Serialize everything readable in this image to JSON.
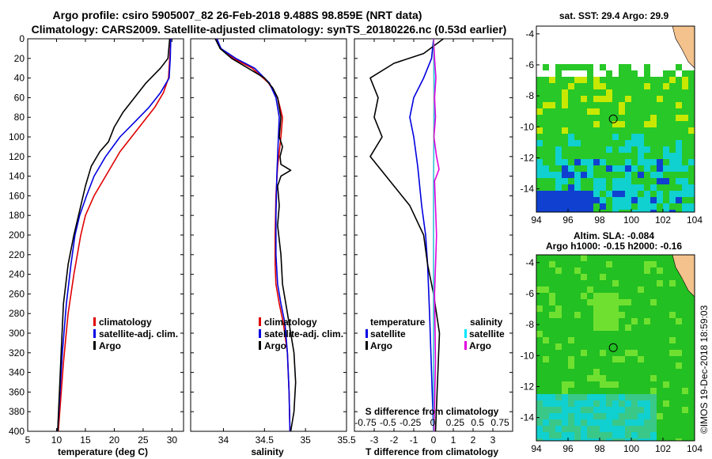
{
  "title": {
    "line1": "Argo profile: csiro 5905007_82 26-Feb-2018 9.488S 98.859E (NRT data)",
    "line2": "Climatology: CARS2009. Satellite-adjusted climatology: synTS_20180226.nc (0.53d earlier)"
  },
  "colors": {
    "climatology": "#e00000",
    "satellite": "#0000e0",
    "argo": "#000000",
    "salinity_satellite": "#00e5ff",
    "salinity_argo": "#e000e0",
    "sst_blue": "#1040d0",
    "sst_cyan": "#10d0d0",
    "sst_green": "#28c828",
    "sst_yellow": "#c8e800",
    "sla_green": "#22c022",
    "sla_light": "#70e030",
    "land": "#f4c28c"
  },
  "chart_data": [
    {
      "type": "line",
      "id": "temperature",
      "xlabel": "temperature (deg C)",
      "ylabel": "depth",
      "xlim": [
        5,
        32
      ],
      "ylim": [
        400,
        0
      ],
      "xticks": [
        5,
        10,
        15,
        20,
        25,
        30
      ],
      "yticks": [
        0,
        20,
        40,
        60,
        80,
        100,
        120,
        140,
        160,
        180,
        200,
        220,
        240,
        260,
        280,
        300,
        320,
        340,
        360,
        380,
        400
      ],
      "legend": [
        "climatology",
        "satellite-adj. clim.",
        "Argo"
      ],
      "series": [
        {
          "name": "climatology",
          "color": "climatology",
          "x": [
            29.8,
            29.6,
            29.4,
            28.5,
            27.0,
            25.0,
            23.0,
            21.0,
            18.5,
            16.5,
            15.0,
            14.2,
            13.0,
            12.0,
            11.2,
            10.3
          ],
          "y": [
            0,
            20,
            40,
            55,
            70,
            85,
            100,
            115,
            140,
            160,
            180,
            200,
            240,
            280,
            330,
            400
          ]
        },
        {
          "name": "satellite-adj. clim.",
          "color": "satellite",
          "x": [
            29.8,
            29.7,
            29.5,
            28.0,
            26.0,
            23.5,
            21.0,
            18.5,
            16.5,
            15.2,
            14.0,
            13.2,
            12.5,
            11.7,
            11.0,
            10.2
          ],
          "y": [
            0,
            20,
            40,
            55,
            70,
            85,
            100,
            120,
            140,
            160,
            180,
            200,
            230,
            270,
            320,
            400
          ]
        },
        {
          "name": "Argo",
          "color": "argo",
          "x": [
            29.6,
            29.3,
            28.0,
            25.5,
            23.5,
            21.5,
            20.0,
            19.0,
            17.5,
            16.0,
            15.0,
            14.0,
            13.0,
            12.0,
            11.2,
            10.8,
            10.2
          ],
          "y": [
            0,
            20,
            30,
            45,
            60,
            75,
            90,
            105,
            115,
            130,
            150,
            175,
            200,
            230,
            270,
            320,
            400
          ]
        }
      ]
    },
    {
      "type": "line",
      "id": "salinity",
      "xlabel": "salinity",
      "ylabel": "depth",
      "xlim": [
        33.6,
        35.5
      ],
      "ylim": [
        400,
        0
      ],
      "xticks": [
        34,
        34.5,
        35,
        35.5
      ],
      "xticklabels": [
        "34",
        "34.5",
        "35",
        "35.5"
      ],
      "legend": [
        "climatology",
        "satellite-adj. clim.",
        "Argo"
      ],
      "series": [
        {
          "name": "climatology",
          "color": "climatology",
          "x": [
            33.92,
            33.96,
            34.12,
            34.35,
            34.55,
            34.66,
            34.72,
            34.7,
            34.66,
            34.64,
            34.63,
            34.63,
            34.64,
            34.68,
            34.73,
            34.78,
            34.8,
            34.81
          ],
          "y": [
            0,
            10,
            20,
            30,
            45,
            60,
            80,
            100,
            130,
            160,
            200,
            230,
            250,
            270,
            290,
            320,
            360,
            400
          ]
        },
        {
          "name": "satellite-adj. clim.",
          "color": "satellite",
          "x": [
            33.92,
            33.97,
            34.15,
            34.38,
            34.56,
            34.64,
            34.68,
            34.67,
            34.65,
            34.64,
            34.64,
            34.66,
            34.7,
            34.75,
            34.78,
            34.8,
            34.81
          ],
          "y": [
            0,
            10,
            20,
            30,
            45,
            60,
            80,
            100,
            140,
            180,
            220,
            250,
            270,
            290,
            320,
            360,
            400
          ]
        },
        {
          "name": "Argo",
          "color": "argo",
          "x": [
            33.9,
            33.96,
            34.1,
            34.3,
            34.5,
            34.6,
            34.66,
            34.7,
            34.68,
            34.72,
            34.69,
            34.7,
            34.82,
            34.7,
            34.66,
            34.68,
            34.66,
            34.7,
            34.72,
            34.76,
            34.82,
            34.86,
            34.88,
            34.86,
            34.82
          ],
          "y": [
            0,
            10,
            20,
            30,
            40,
            50,
            60,
            80,
            100,
            110,
            120,
            128,
            134,
            140,
            150,
            170,
            190,
            220,
            250,
            270,
            300,
            320,
            350,
            380,
            400
          ]
        }
      ]
    },
    {
      "type": "line",
      "id": "difference",
      "xlabel": "T difference from climatology",
      "xlabel_top": "S difference from climatology",
      "xlim": [
        -4,
        4
      ],
      "ylim": [
        400,
        0
      ],
      "xticks": [
        -3,
        -2,
        -1,
        0,
        1,
        2,
        3
      ],
      "xticklabels": [
        "-3",
        "-2",
        "-1",
        "0",
        "1",
        "2",
        "3"
      ],
      "sticks": [
        -0.75,
        -0.5,
        -0.25,
        0,
        0.25,
        0.5,
        0.75
      ],
      "sticklabels": [
        "-0.75",
        "-0.5",
        "-0.25",
        "0",
        "0.25",
        "0.5",
        "0.75"
      ],
      "legend_temperature_title": "temperature",
      "legend_salinity_title": "salinity",
      "legend_temperature": [
        "satellite",
        "Argo"
      ],
      "legend_salinity": [
        "satellite",
        "Argo"
      ],
      "series": [
        {
          "name": "T satellite",
          "color": "satellite",
          "x": [
            0.0,
            -0.1,
            -0.5,
            -1.0,
            -1.2,
            -1.0,
            -0.8,
            -0.6,
            -0.4,
            -0.3,
            -0.2,
            -0.1,
            0.0
          ],
          "y": [
            0,
            20,
            40,
            60,
            80,
            100,
            130,
            170,
            200,
            230,
            280,
            340,
            400
          ]
        },
        {
          "name": "T Argo",
          "color": "argo",
          "x": [
            0.5,
            -0.5,
            -2.0,
            -3.2,
            -2.8,
            -3.0,
            -2.6,
            -3.2,
            -2.0,
            -1.2,
            -0.5,
            -0.3,
            0.0,
            0.3,
            0.2,
            0.1
          ],
          "y": [
            0,
            15,
            25,
            40,
            60,
            80,
            100,
            120,
            150,
            170,
            200,
            230,
            260,
            300,
            350,
            400
          ]
        },
        {
          "name": "S satellite",
          "color": "salinity_satellite",
          "x": [
            0.0,
            0.02,
            0.05,
            0.02,
            0.0,
            0.0,
            0.0,
            0.0,
            0.0
          ],
          "y": [
            0,
            30,
            60,
            100,
            150,
            200,
            250,
            320,
            400
          ]
        },
        {
          "name": "S Argo",
          "color": "salinity_argo",
          "x": [
            0.0,
            0.05,
            0.12,
            0.05,
            0.1,
            0.02,
            0.15,
            0.28,
            0.05,
            0.15,
            0.05,
            0.1,
            0.02
          ],
          "y": [
            0,
            20,
            40,
            60,
            80,
            100,
            120,
            133,
            145,
            200,
            260,
            330,
            400
          ]
        }
      ]
    },
    {
      "type": "heatmap",
      "id": "sst_map",
      "title": "sat. SST: 29.4 Argo: 29.9",
      "xlim": [
        94,
        104
      ],
      "ylim": [
        -15.5,
        -3.5
      ],
      "xticks": [
        94,
        96,
        98,
        100,
        102,
        104
      ],
      "yticks": [
        -4,
        -6,
        -8,
        -10,
        -12,
        -14
      ],
      "float_position": {
        "lon": 98.859,
        "lat": -9.488
      }
    },
    {
      "type": "heatmap",
      "id": "sla_map",
      "title": "Altim. SLA: -0.084",
      "subtitle": "Argo h1000: -0.15 h2000: -0.16",
      "xlim": [
        94,
        104
      ],
      "ylim": [
        -15.5,
        -3.5
      ],
      "xticks": [
        94,
        96,
        98,
        100,
        102,
        104
      ],
      "yticks": [
        -4,
        -6,
        -8,
        -10,
        -12,
        -14
      ],
      "float_position": {
        "lon": 98.859,
        "lat": -9.488
      }
    }
  ],
  "credit": "©IMOS 19-Dec-2018 18:59:03"
}
